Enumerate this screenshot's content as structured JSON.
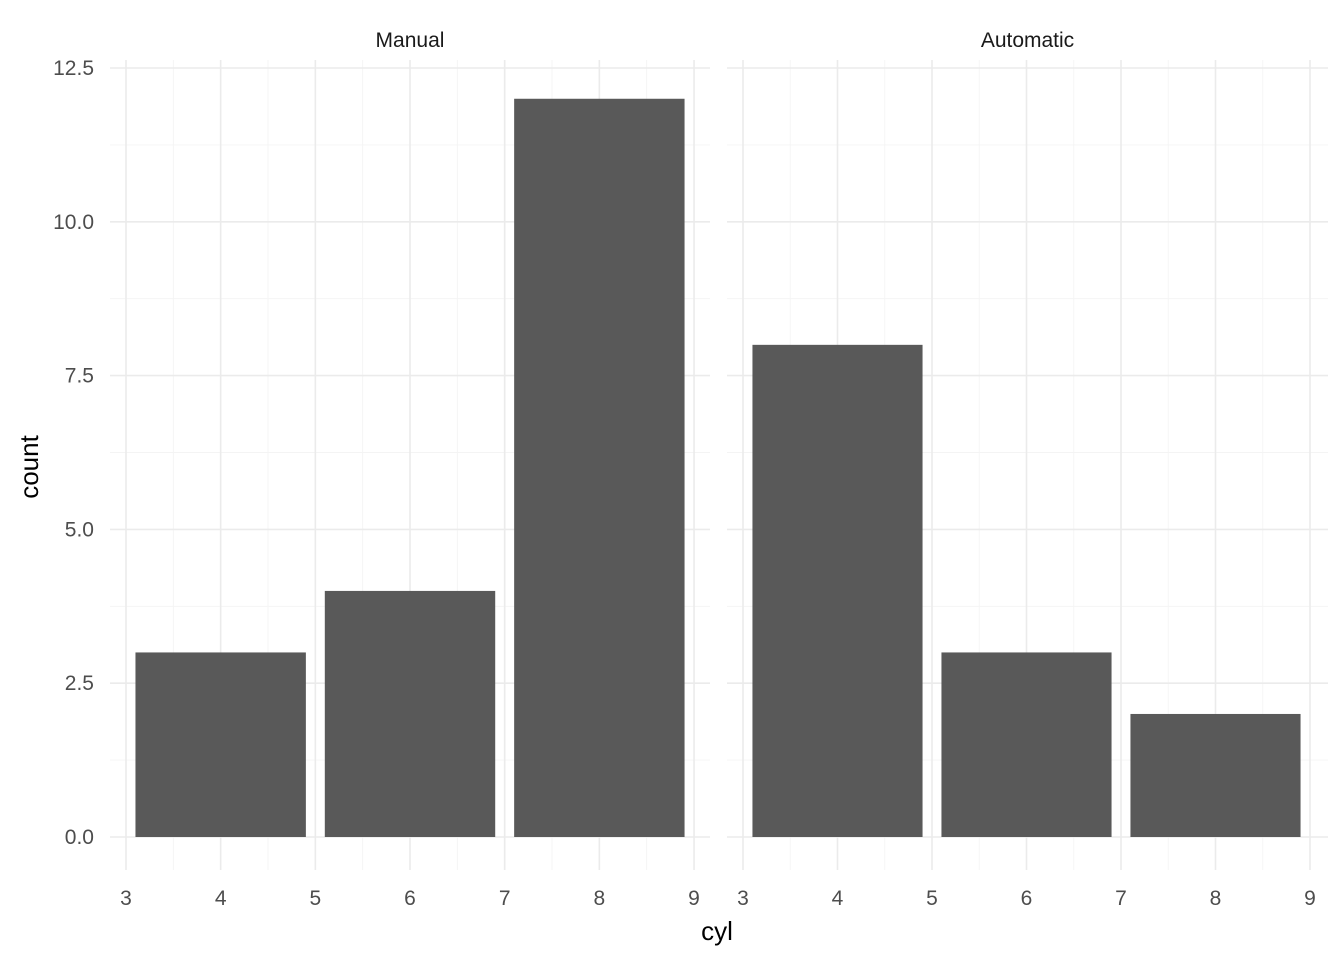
{
  "chart_data": {
    "type": "bar",
    "facet_by": "am",
    "xlabel": "cyl",
    "ylabel": "count",
    "xlim": [
      3,
      9
    ],
    "x_ticks": [
      3,
      4,
      5,
      6,
      7,
      8,
      9
    ],
    "ylim": [
      0,
      12.5
    ],
    "y_ticks": [
      0,
      2.5,
      5,
      7.5,
      10,
      12.5
    ],
    "y_tick_labels": [
      "0.0",
      "2.5",
      "5.0",
      "7.5",
      "10.0",
      "12.5"
    ],
    "grid": true,
    "theme": "minimal",
    "bar_color": "#595959",
    "panels": [
      {
        "label": "Manual",
        "bars": [
          {
            "x": 4,
            "count": 3
          },
          {
            "x": 6,
            "count": 4
          },
          {
            "x": 8,
            "count": 12
          }
        ]
      },
      {
        "label": "Automatic",
        "bars": [
          {
            "x": 4,
            "count": 8
          },
          {
            "x": 6,
            "count": 3
          },
          {
            "x": 8,
            "count": 2
          }
        ]
      }
    ]
  }
}
